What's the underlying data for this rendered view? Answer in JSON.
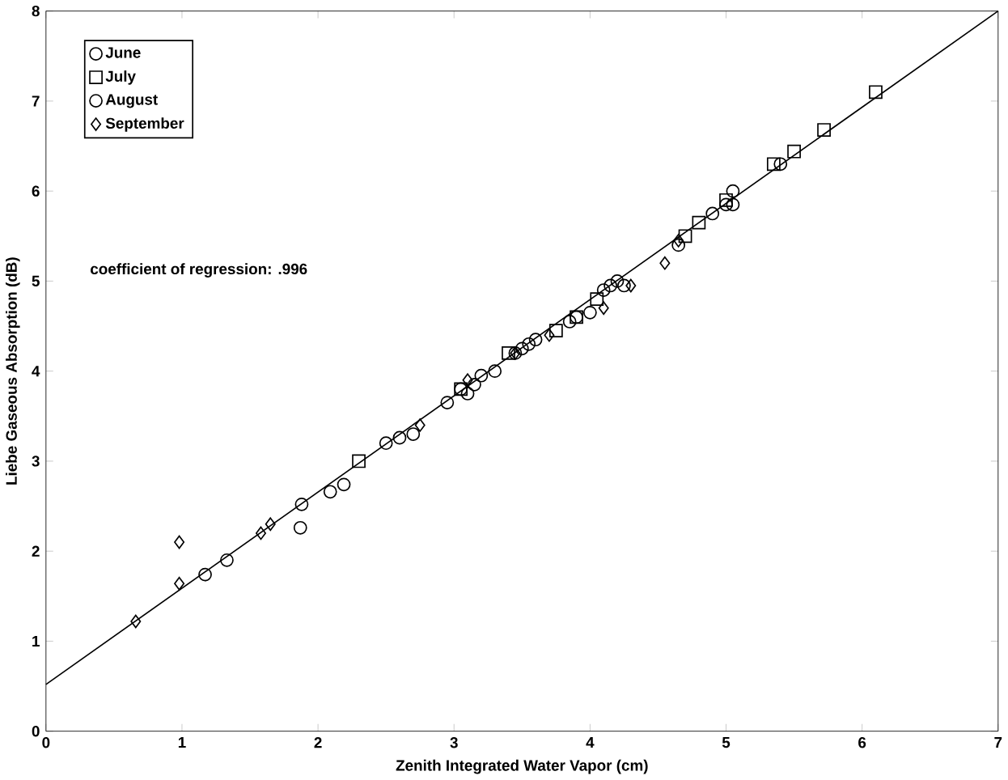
{
  "chart_data": {
    "type": "scatter",
    "xlabel": "Zenith Integrated Water Vapor (cm)",
    "ylabel": "Liebe Gaseous Absorption (dB)",
    "xlim": [
      0,
      7
    ],
    "ylim": [
      0,
      8
    ],
    "xticks": [
      0,
      1,
      2,
      3,
      4,
      5,
      6,
      7
    ],
    "yticks": [
      0,
      1,
      2,
      3,
      4,
      5,
      6,
      7,
      8
    ],
    "legend": "top left",
    "grid": false,
    "annotations": [
      "coefficient of regression:  .996"
    ],
    "series": [
      {
        "name": "June",
        "marker": "circle",
        "color": "#000000",
        "x": [
          1.17,
          1.33,
          1.87,
          1.88,
          2.09,
          2.19,
          2.6,
          2.95,
          3.1,
          3.15,
          3.3,
          3.45,
          3.55,
          3.9,
          4.0,
          4.15,
          5.0,
          5.05
        ],
        "values": [
          1.74,
          1.9,
          2.26,
          2.52,
          2.66,
          2.74,
          3.26,
          3.65,
          3.75,
          3.85,
          4.0,
          4.2,
          4.3,
          4.6,
          4.65,
          4.95,
          5.85,
          6.0
        ]
      },
      {
        "name": "July",
        "marker": "square",
        "color": "#000000",
        "x": [
          2.3,
          3.05,
          3.4,
          3.75,
          3.9,
          4.05,
          4.7,
          4.8,
          5.0,
          5.35,
          5.5,
          5.72,
          6.1
        ],
        "values": [
          3.0,
          3.8,
          4.2,
          4.45,
          4.6,
          4.8,
          5.5,
          5.65,
          5.9,
          6.3,
          6.44,
          6.68,
          7.1
        ]
      },
      {
        "name": "August",
        "marker": "circle",
        "color": "#000000",
        "x": [
          2.5,
          2.7,
          3.05,
          3.2,
          3.5,
          3.6,
          3.85,
          4.1,
          4.2,
          4.25,
          4.65,
          4.9,
          5.05,
          5.4
        ],
        "values": [
          3.2,
          3.3,
          3.8,
          3.95,
          4.25,
          4.35,
          4.55,
          4.9,
          5.0,
          4.95,
          5.4,
          5.75,
          5.85,
          6.3
        ]
      },
      {
        "name": "September",
        "marker": "diamond",
        "color": "#000000",
        "x": [
          0.66,
          0.98,
          0.98,
          1.58,
          1.65,
          2.75,
          3.1,
          3.45,
          3.7,
          4.1,
          4.3,
          4.55,
          4.65
        ],
        "values": [
          1.22,
          2.1,
          1.64,
          2.2,
          2.3,
          3.4,
          3.9,
          4.2,
          4.4,
          4.7,
          4.95,
          5.2,
          5.45
        ]
      },
      {
        "type": "line",
        "marker": "none",
        "line_style": "solid",
        "color": "#000000",
        "x": [
          0,
          7
        ],
        "values": [
          0.52,
          8.0
        ]
      }
    ]
  }
}
